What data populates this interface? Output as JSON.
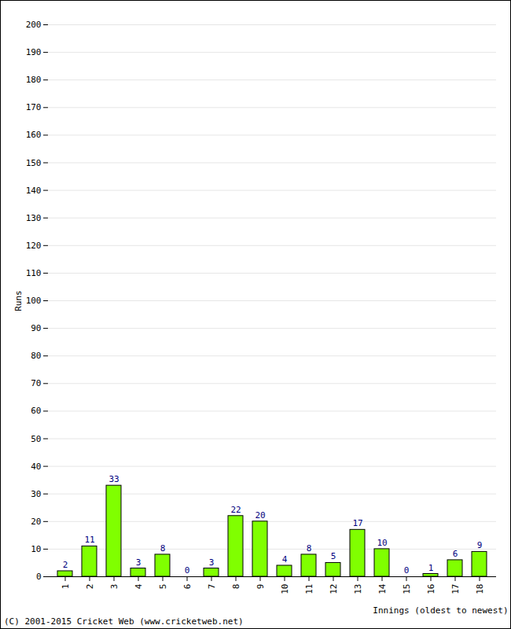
{
  "chart_data": {
    "type": "bar",
    "categories": [
      "1",
      "2",
      "3",
      "4",
      "5",
      "6",
      "7",
      "8",
      "9",
      "10",
      "11",
      "12",
      "13",
      "14",
      "15",
      "16",
      "17",
      "18"
    ],
    "values": [
      2,
      11,
      33,
      3,
      8,
      0,
      3,
      22,
      20,
      4,
      8,
      5,
      17,
      10,
      0,
      1,
      6,
      9
    ],
    "color": "#80ff00",
    "x_label": "Innings (oldest to newest)",
    "y_label": "Runs",
    "caption": "(C) 2001-2015 Cricket Web (www.cricketweb.net)",
    "ylim": [
      0,
      200
    ],
    "yticks": [
      0,
      10,
      20,
      30,
      40,
      50,
      60,
      70,
      80,
      90,
      100,
      110,
      120,
      130,
      140,
      150,
      160,
      170,
      180,
      190,
      200
    ],
    "grid": true,
    "data_labels": true
  }
}
